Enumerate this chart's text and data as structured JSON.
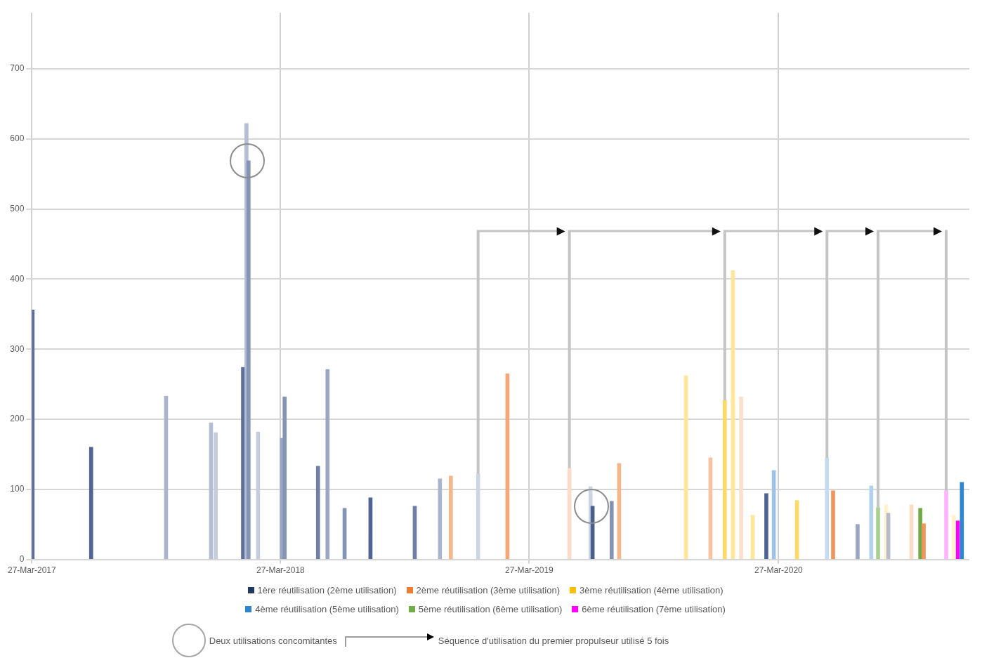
{
  "chart_data": {
    "type": "bar",
    "xlim": [
      "2017-03-27",
      "2021-01-01"
    ],
    "xticks": [
      {
        "value": "2017-03-27",
        "label": "27-Mar-2017"
      },
      {
        "value": "2018-03-27",
        "label": "27-Mar-2018"
      },
      {
        "value": "2019-03-27",
        "label": "27-Mar-2019"
      },
      {
        "value": "2020-03-27",
        "label": "27-Mar-2020"
      }
    ],
    "ylim": [
      0,
      780
    ],
    "yticks": [
      0,
      100,
      200,
      300,
      400,
      500,
      600,
      700
    ],
    "grid": true,
    "legend": "bottom",
    "series": [
      {
        "name": "1ère réutilisation (2ème utilisation)",
        "color": "#203864",
        "x": [
          "2017-03-28",
          "2017-06-22",
          "2017-10-10",
          "2017-12-15",
          "2017-12-22",
          "2018-01-31",
          "2018-02-05",
          "2018-02-08",
          "2018-02-22",
          "2018-03-29",
          "2018-04-02",
          "2018-05-21",
          "2018-06-04",
          "2018-06-29",
          "2018-08-06",
          "2018-10-10",
          "2018-11-16",
          "2019-01-11",
          "2019-06-25",
          "2019-06-28",
          "2019-07-26",
          "2020-03-09",
          "2020-07-21",
          "2020-09-04"
        ],
        "values": [
          356,
          160,
          233,
          195,
          181,
          274,
          622,
          569,
          182,
          173,
          232,
          133,
          271,
          73,
          88,
          76,
          115,
          122,
          104,
          76,
          83,
          94,
          50,
          66
        ],
        "colors": [
          "#5d6f98",
          "#4f6394",
          "#aab5cc",
          "#b3bdd3",
          "#c5cddd",
          "#5d6f98",
          "#b3bdd3",
          "#8593b5",
          "#c5cddd",
          "#9aa6c2",
          "#8593b5",
          "#6e7fa5",
          "#9aa6c2",
          "#8593b5",
          "#4f6394",
          "#6e7fa5",
          "#aab5cc",
          "#cdd4e3",
          "#cdd4e3",
          "#4a5f8c",
          "#8593b5",
          "#4f6394",
          "#9aa6c2",
          "#b8bcc8"
        ]
      },
      {
        "name": "2ème réutilisation (3ème utilisation)",
        "color": "#ed7d31",
        "x": [
          "2018-12-02",
          "2019-02-23",
          "2019-05-25",
          "2019-08-06",
          "2019-12-18",
          "2020-02-01",
          "2020-06-15",
          "2020-10-08",
          "2020-10-26"
        ],
        "values": [
          119,
          265,
          130,
          137,
          145,
          232,
          98,
          78,
          51
        ],
        "colors": [
          "#f5b78a",
          "#f4a877",
          "#fbdcc8",
          "#f5b78a",
          "#f7c4a3",
          "#fbe0d2",
          "#f0955b",
          "#fbdcc8",
          "#f0955b"
        ]
      },
      {
        "name": "3ème réutilisation (4ème utilisation)",
        "color": "#ffc000",
        "x": [
          "2019-11-12",
          "2020-01-08",
          "2020-01-20",
          "2020-02-18",
          "2020-04-23",
          "2020-09-01",
          "2020-12-09"
        ],
        "values": [
          262,
          227,
          412,
          63,
          84,
          78,
          63
        ],
        "colors": [
          "#ffe699",
          "#ffd966",
          "#ffe699",
          "#ffe699",
          "#ffd966",
          "#fff2cc",
          "#fff2cc"
        ]
      },
      {
        "name": "4ème réutilisation (5ème utilisation)",
        "color": "#2e86d0",
        "x": [
          "2020-03-20",
          "2020-06-06",
          "2020-08-10",
          "2020-12-21"
        ],
        "values": [
          127,
          145,
          105,
          110
        ],
        "colors": [
          "#9dc3e6",
          "#c5dcf0",
          "#b4d2ec",
          "#2e86d0"
        ]
      },
      {
        "name": "5ème réutilisation (6ème utilisation)",
        "color": "#70ad47",
        "x": [
          "2020-08-20",
          "2020-10-21"
        ],
        "values": [
          74,
          73
        ],
        "colors": [
          "#a9d18e",
          "#70ad47"
        ]
      },
      {
        "name": "6ème réutilisation (7ème utilisation)",
        "color": "#ff00ff",
        "x": [
          "2020-11-28",
          "2020-12-15"
        ],
        "values": [
          98,
          55
        ],
        "colors": [
          "#ffb3ff",
          "#ff00ff"
        ]
      }
    ],
    "annotations": [
      "Deux utilisations concomitantes",
      "Séquence d'utilisation du premier propulseur utilisé 5 fois"
    ]
  }
}
